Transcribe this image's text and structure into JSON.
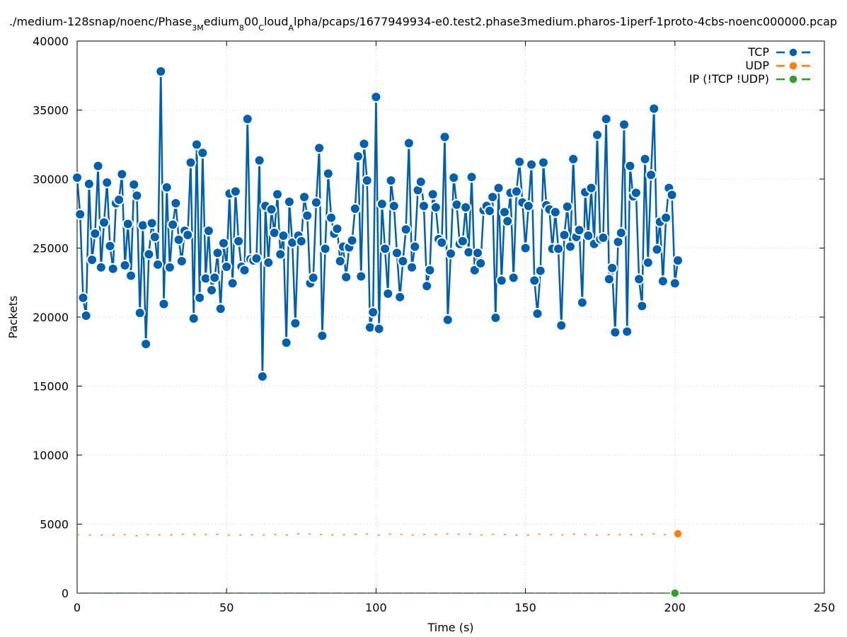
{
  "chart_data": {
    "type": "line",
    "title_parts": [
      {
        "t": "./medium-128snap/noenc/Phase",
        "sub": false
      },
      {
        "t": "3M",
        "sub": true
      },
      {
        "t": "edium",
        "sub": false
      },
      {
        "t": "8",
        "sub": true
      },
      {
        "t": "00",
        "sub": false
      },
      {
        "t": "C",
        "sub": true
      },
      {
        "t": "loud",
        "sub": false
      },
      {
        "t": "A",
        "sub": true
      },
      {
        "t": "lpha/pcaps/1677949934-e0.test2.phase3medium.pharos-1iperf-1proto-4cbs-noenc000000.pcap",
        "sub": false
      }
    ],
    "xlabel": "Time (s)",
    "ylabel": "Packets",
    "xlim": [
      0,
      250
    ],
    "ylim": [
      0,
      40000
    ],
    "xticks": [
      0,
      50,
      100,
      150,
      200,
      250
    ],
    "yticks": [
      0,
      5000,
      10000,
      15000,
      20000,
      25000,
      30000,
      35000,
      40000
    ],
    "grid": true,
    "legend_position": "top-right",
    "series": [
      {
        "name": "TCP",
        "color": "#0060ad",
        "x_start": 0,
        "x_step": 1,
        "values": [
          30100,
          27450,
          21400,
          20100,
          29650,
          24150,
          26050,
          30950,
          23600,
          26850,
          29750,
          25150,
          23500,
          28250,
          28500,
          30350,
          23750,
          26750,
          23000,
          29600,
          28800,
          20300,
          26650,
          18050,
          24550,
          26800,
          25800,
          23800,
          37800,
          20950,
          29400,
          23600,
          26700,
          28250,
          25600,
          24050,
          26250,
          25950,
          31200,
          19900,
          32500,
          21400,
          31900,
          22800,
          26250,
          21950,
          22850,
          24650,
          20600,
          25350,
          23650,
          28950,
          22450,
          29100,
          25500,
          23650,
          23400,
          34350,
          24200,
          24100,
          24250,
          31350,
          15700,
          28050,
          23950,
          27800,
          26100,
          28900,
          24550,
          25900,
          18150,
          28350,
          25400,
          19550,
          25900,
          25500,
          28700,
          27350,
          22450,
          22850,
          28300,
          32250,
          18650,
          24950,
          30400,
          27200,
          26050,
          26400,
          24050,
          25100,
          22900,
          25050,
          25550,
          27850,
          31650,
          22950,
          32550,
          29900,
          19250,
          20350,
          35950,
          19150,
          28200,
          24950,
          21700,
          29900,
          28050,
          24650,
          21450,
          24050,
          26350,
          32600,
          23600,
          25100,
          29200,
          29800,
          28050,
          22250,
          23400,
          28900,
          27950,
          25650,
          25400,
          33050,
          19800,
          24600,
          30100,
          28150,
          25300,
          25500,
          27950,
          24700,
          30150,
          23400,
          24650,
          23900,
          27750,
          28050,
          27700,
          28700,
          19950,
          29350,
          22650,
          27600,
          26950,
          29000,
          22850,
          29100,
          31250,
          28300,
          25000,
          28050,
          31050,
          22650,
          20250,
          23350,
          31200,
          28100,
          27800,
          24950,
          27600,
          24950,
          19400,
          25950,
          28000,
          25100,
          31450,
          25800,
          26300,
          21050,
          29050,
          25900,
          29350,
          25300,
          33200,
          25650,
          25750,
          34350,
          22750,
          23550,
          18900,
          25450,
          26100,
          33950,
          18950,
          30950,
          28750,
          29000,
          22750,
          20800,
          31450,
          23950,
          30300,
          35100,
          24900,
          26900,
          22600,
          27200,
          29350,
          28850,
          22450,
          24100
        ]
      },
      {
        "name": "UDP",
        "color": "#ff7f0e",
        "x_start": 0,
        "x_step": 1,
        "values": [
          4250,
          4200,
          4250,
          4200,
          4200,
          4250,
          4200,
          4200,
          4200,
          4250,
          4300,
          4200,
          4200,
          4200,
          4300,
          4200,
          4250,
          4200,
          4250,
          4200,
          4150,
          4250,
          4200,
          4300,
          4200,
          4250,
          4250,
          4200,
          4250,
          4200,
          4200,
          4200,
          4250,
          4200,
          4300,
          4250,
          4300,
          4200,
          4250,
          4250,
          4200,
          4300,
          4200,
          4250,
          4300,
          4250,
          4200,
          4250,
          4300,
          4200,
          4250,
          4200,
          4250,
          4150,
          4200,
          4200,
          4150,
          4250,
          4250,
          4200,
          4200,
          4250,
          4200,
          4250,
          4300,
          4200,
          4250,
          4200,
          4300,
          4250,
          4200,
          4300,
          4200,
          4250,
          4300,
          4200,
          4250,
          4250,
          4300,
          4200,
          4250,
          4300,
          4200,
          4250,
          4300,
          4200,
          4250,
          4200,
          4300,
          4250,
          4200,
          4300,
          4250,
          4250,
          4300,
          4200,
          4250,
          4300,
          4200,
          4250,
          4250,
          4200,
          4250,
          4150,
          4200,
          4300,
          4250,
          4200,
          4300,
          4200,
          4250,
          4300,
          4200,
          4250,
          4300,
          4200,
          4250,
          4250,
          4300,
          4200,
          4250,
          4300,
          4200,
          4250,
          4300,
          4200,
          4250,
          4200,
          4300,
          4250,
          4200,
          4300,
          4250,
          4250,
          4300,
          4200,
          4250,
          4300,
          4200,
          4250,
          4250,
          4200,
          4250,
          4250,
          4200,
          4300,
          4250,
          4200,
          4150,
          4250,
          4200,
          4200,
          4250,
          4150,
          4200,
          4300,
          4200,
          4250,
          4200,
          4250,
          4150,
          4200,
          4200,
          4250,
          4200,
          4250,
          4300,
          4200,
          4250,
          4150,
          4250,
          4200,
          4300,
          4250,
          4200,
          4250,
          4250,
          4200,
          4250,
          4300,
          4250,
          4150,
          4300,
          4200,
          4250,
          4250,
          4200,
          4300,
          4150,
          4250,
          4200,
          4250,
          4250,
          4300,
          4200,
          4250,
          4300,
          4200,
          4250,
          4200,
          4250,
          4300
        ]
      },
      {
        "name": "IP (!TCP  !UDP)",
        "color": "#2ca02c",
        "x_start": 0,
        "x_step": 1,
        "values": [
          0,
          0,
          0,
          0,
          0,
          0,
          0,
          0,
          0,
          0,
          0,
          0,
          0,
          0,
          0,
          0,
          0,
          0,
          0,
          0,
          0,
          0,
          0,
          0,
          0,
          0,
          0,
          0,
          0,
          0,
          0,
          0,
          0,
          0,
          0,
          0,
          0,
          0,
          0,
          0,
          0,
          0,
          0,
          0,
          0,
          0,
          0,
          0,
          0,
          0,
          0,
          0,
          0,
          0,
          0,
          0,
          0,
          0,
          0,
          0,
          0,
          0,
          0,
          0,
          0,
          0,
          0,
          0,
          0,
          0,
          0,
          0,
          0,
          0,
          0,
          0,
          0,
          0,
          0,
          0,
          0,
          0,
          0,
          0,
          0,
          0,
          0,
          0,
          0,
          0,
          0,
          0,
          0,
          0,
          0,
          0,
          0,
          0,
          0,
          0,
          0,
          0,
          0,
          0,
          0,
          0,
          0,
          0,
          0,
          0,
          0,
          0,
          0,
          0,
          0,
          0,
          0,
          0,
          0,
          0,
          0,
          0,
          0,
          0,
          0,
          0,
          0,
          0,
          0,
          0,
          0,
          0,
          0,
          0,
          0,
          0,
          0,
          0,
          0,
          0,
          0,
          0,
          0,
          0,
          0,
          0,
          0,
          0,
          0,
          0,
          0,
          0,
          0,
          0,
          0,
          0,
          0,
          0,
          0,
          0,
          0,
          0,
          0,
          0,
          0,
          0,
          0,
          0,
          0,
          0,
          0,
          0,
          0,
          0,
          0,
          0,
          0,
          0,
          0,
          0,
          0,
          0,
          0,
          0,
          0,
          0,
          0,
          0,
          0,
          0,
          0,
          0,
          0,
          0,
          0,
          0,
          0,
          0,
          0,
          0,
          0
        ]
      }
    ]
  }
}
